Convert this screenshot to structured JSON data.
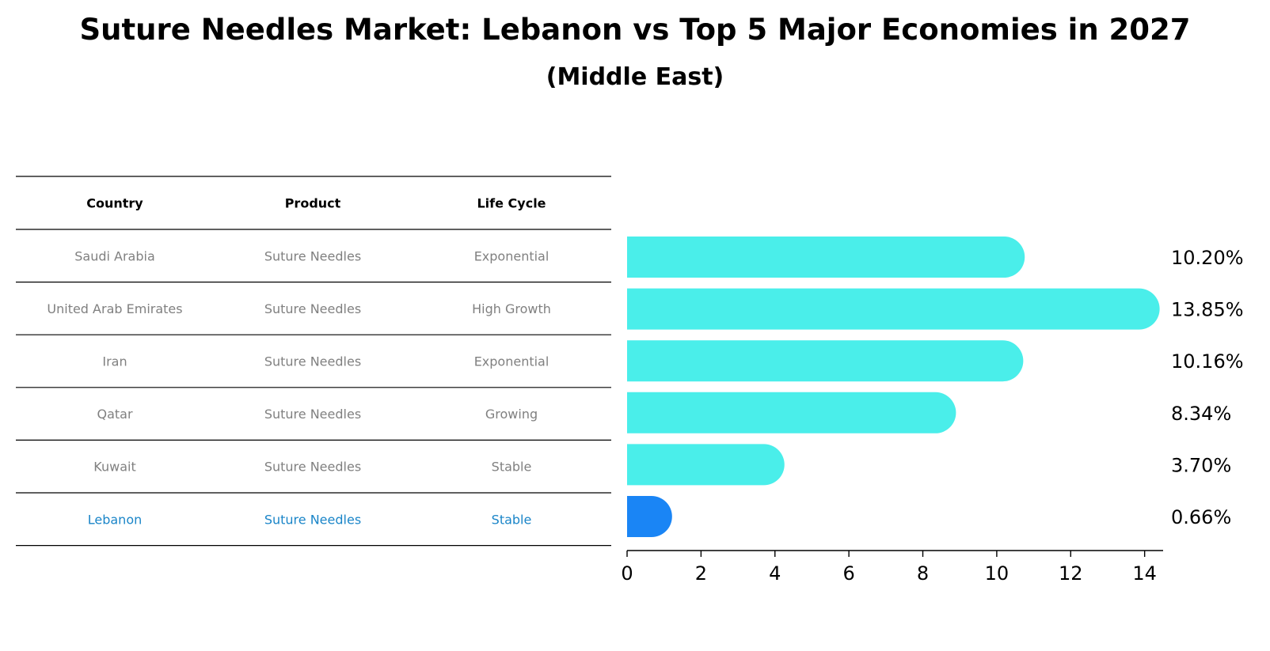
{
  "title": "Suture Needles Market: Lebanon vs Top 5 Major Economies in 2027",
  "subtitle": "(Middle East)",
  "colors": {
    "bar": "#4AEEEA",
    "highlight_bar": "#1A85F5",
    "highlight_text": "#1A85C8",
    "row_text": "#808080",
    "rule": "#000000"
  },
  "table": {
    "headers": [
      "Country",
      "Product",
      "Life Cycle"
    ],
    "rows": [
      {
        "country": "Saudi Arabia",
        "product": "Suture Needles",
        "life_cycle": "Exponential",
        "highlight": false
      },
      {
        "country": "United Arab Emirates",
        "product": "Suture Needles",
        "life_cycle": "High Growth",
        "highlight": false
      },
      {
        "country": "Iran",
        "product": "Suture Needles",
        "life_cycle": "Exponential",
        "highlight": false
      },
      {
        "country": "Qatar",
        "product": "Suture Needles",
        "life_cycle": "Growing",
        "highlight": false
      },
      {
        "country": "Kuwait",
        "product": "Suture Needles",
        "life_cycle": "Stable",
        "highlight": false
      },
      {
        "country": "Lebanon",
        "product": "Suture Needles",
        "life_cycle": "Stable",
        "highlight": true
      }
    ]
  },
  "chart_data": {
    "type": "bar",
    "orientation": "horizontal",
    "categories": [
      "Saudi Arabia",
      "United Arab Emirates",
      "Iran",
      "Qatar",
      "Kuwait",
      "Lebanon"
    ],
    "values": [
      10.2,
      13.85,
      10.16,
      8.34,
      3.7,
      0.66
    ],
    "value_labels": [
      "10.20%",
      "13.85%",
      "10.16%",
      "8.34%",
      "3.70%",
      "0.66%"
    ],
    "highlight_category": "Lebanon",
    "xlim": [
      0,
      14.5
    ],
    "xticks": [
      0,
      2,
      4,
      6,
      8,
      10,
      12,
      14
    ],
    "title": "Suture Needles Market: Lebanon vs Top 5 Major Economies in 2027",
    "subtitle": "(Middle East)",
    "xlabel": "",
    "ylabel": "",
    "grid": false,
    "legend": "none"
  }
}
